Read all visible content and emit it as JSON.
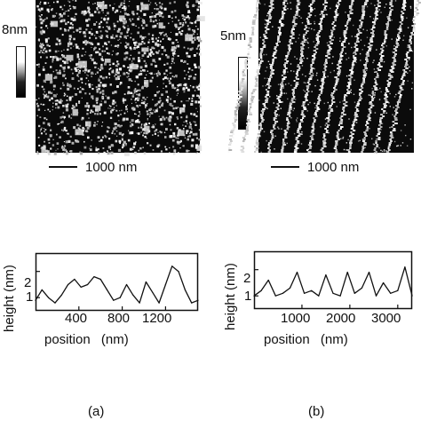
{
  "panel_a": {
    "height_scale_label": "8nm",
    "scale_bar_label": "1000 nm",
    "profile": {
      "ylabel": "height (nm)",
      "xlabel": "position (nm)",
      "yticks": [
        "2",
        "1"
      ],
      "xticks": [
        "400",
        "800",
        "1200"
      ],
      "caption": "(a)"
    }
  },
  "panel_b": {
    "height_scale_label": "5nm",
    "scale_bar_label": "1000 nm",
    "profile": {
      "ylabel": "height (nm)",
      "xlabel": "position (nm)",
      "yticks": [
        "2",
        "1"
      ],
      "xticks": [
        "1000",
        "2000",
        "3000"
      ],
      "caption": "(b)"
    }
  },
  "chart_data": [
    {
      "type": "line",
      "xlim": [
        0,
        1500
      ],
      "ylim": [
        0.5,
        2.7
      ],
      "x": [
        0,
        60,
        120,
        180,
        240,
        300,
        360,
        420,
        480,
        540,
        600,
        660,
        720,
        780,
        840,
        900,
        960,
        1020,
        1080,
        1140,
        1200,
        1260,
        1320,
        1380,
        1440,
        1500
      ],
      "y": [
        0.9,
        1.3,
        1.0,
        0.8,
        1.1,
        1.5,
        1.7,
        1.4,
        1.5,
        1.8,
        1.7,
        1.3,
        0.9,
        1.0,
        1.5,
        1.1,
        0.8,
        1.6,
        1.2,
        0.8,
        1.5,
        2.2,
        2.0,
        1.3,
        0.8,
        0.9
      ]
    },
    {
      "type": "line",
      "xlim": [
        0,
        3300
      ],
      "ylim": [
        0.5,
        2.7
      ],
      "x": [
        0,
        150,
        300,
        450,
        600,
        750,
        900,
        1050,
        1200,
        1350,
        1500,
        1650,
        1800,
        1950,
        2100,
        2250,
        2400,
        2550,
        2700,
        2850,
        3000,
        3150,
        3300
      ],
      "y": [
        1.0,
        1.2,
        1.6,
        1.0,
        1.1,
        1.3,
        1.9,
        1.1,
        1.2,
        1.0,
        1.8,
        1.1,
        1.0,
        1.9,
        1.1,
        1.3,
        1.9,
        1.0,
        1.5,
        1.1,
        1.2,
        2.1,
        1.0
      ]
    }
  ]
}
